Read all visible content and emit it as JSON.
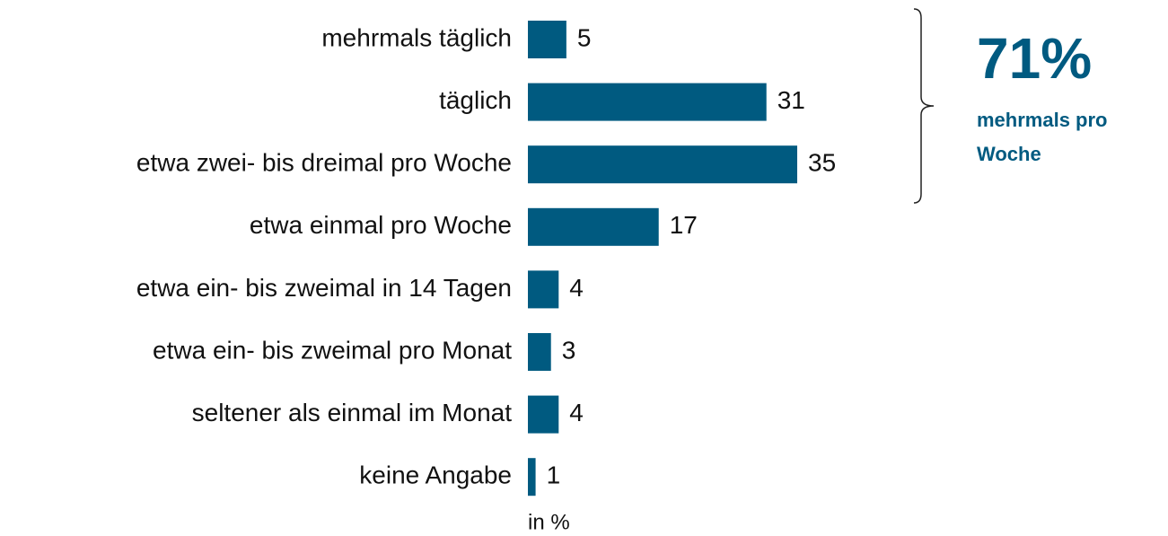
{
  "chart_data": {
    "type": "bar",
    "orientation": "horizontal",
    "categories": [
      "mehrmals täglich",
      "täglich",
      "etwa zwei- bis dreimal pro Woche",
      "etwa einmal pro Woche",
      "etwa ein- bis zweimal in 14 Tagen",
      "etwa ein- bis zweimal pro Monat",
      "seltener als einmal im Monat",
      "keine Angabe"
    ],
    "values": [
      5,
      31,
      35,
      17,
      4,
      3,
      4,
      1
    ],
    "color": "#005a80",
    "unit_label": "in %",
    "annotation": {
      "value": "71%",
      "text": "mehrmals pro Woche",
      "color": "#005a80"
    }
  }
}
